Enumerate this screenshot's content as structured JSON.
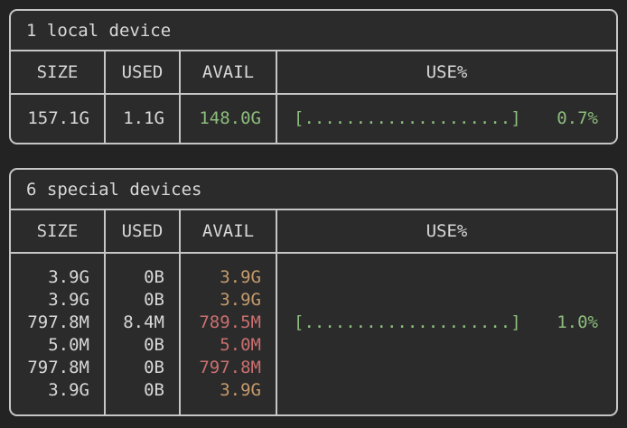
{
  "colors": {
    "page_bg": "#232323",
    "table_bg": "#2b2b2b",
    "border": "#c6c6c6",
    "text": "#d8d8d8",
    "green": "#8cbd7c",
    "yellow": "#c49a6c",
    "red": "#ca6f6f"
  },
  "tables": [
    {
      "title": "1 local device",
      "columns": [
        "SIZE",
        "USED",
        "AVAIL",
        "USE%"
      ],
      "rows": [
        {
          "size": "157.1G",
          "used": "1.1G",
          "avail": "148.0G",
          "avail_color": "green",
          "bar": "[....................]",
          "percent": "0.7%",
          "bar_color": "green"
        }
      ]
    },
    {
      "title": "6 special devices",
      "columns": [
        "SIZE",
        "USED",
        "AVAIL",
        "USE%"
      ],
      "rows": [
        {
          "size": "3.9G",
          "used": "0B",
          "avail": "3.9G",
          "avail_color": "yellow",
          "bar": "",
          "percent": ""
        },
        {
          "size": "3.9G",
          "used": "0B",
          "avail": "3.9G",
          "avail_color": "yellow",
          "bar": "",
          "percent": ""
        },
        {
          "size": "797.8M",
          "used": "8.4M",
          "avail": "789.5M",
          "avail_color": "red",
          "bar": "[....................]",
          "percent": "1.0%",
          "bar_color": "green"
        },
        {
          "size": "5.0M",
          "used": "0B",
          "avail": "5.0M",
          "avail_color": "red",
          "bar": "",
          "percent": ""
        },
        {
          "size": "797.8M",
          "used": "0B",
          "avail": "797.8M",
          "avail_color": "red",
          "bar": "",
          "percent": ""
        },
        {
          "size": "3.9G",
          "used": "0B",
          "avail": "3.9G",
          "avail_color": "yellow",
          "bar": "",
          "percent": ""
        }
      ]
    }
  ]
}
